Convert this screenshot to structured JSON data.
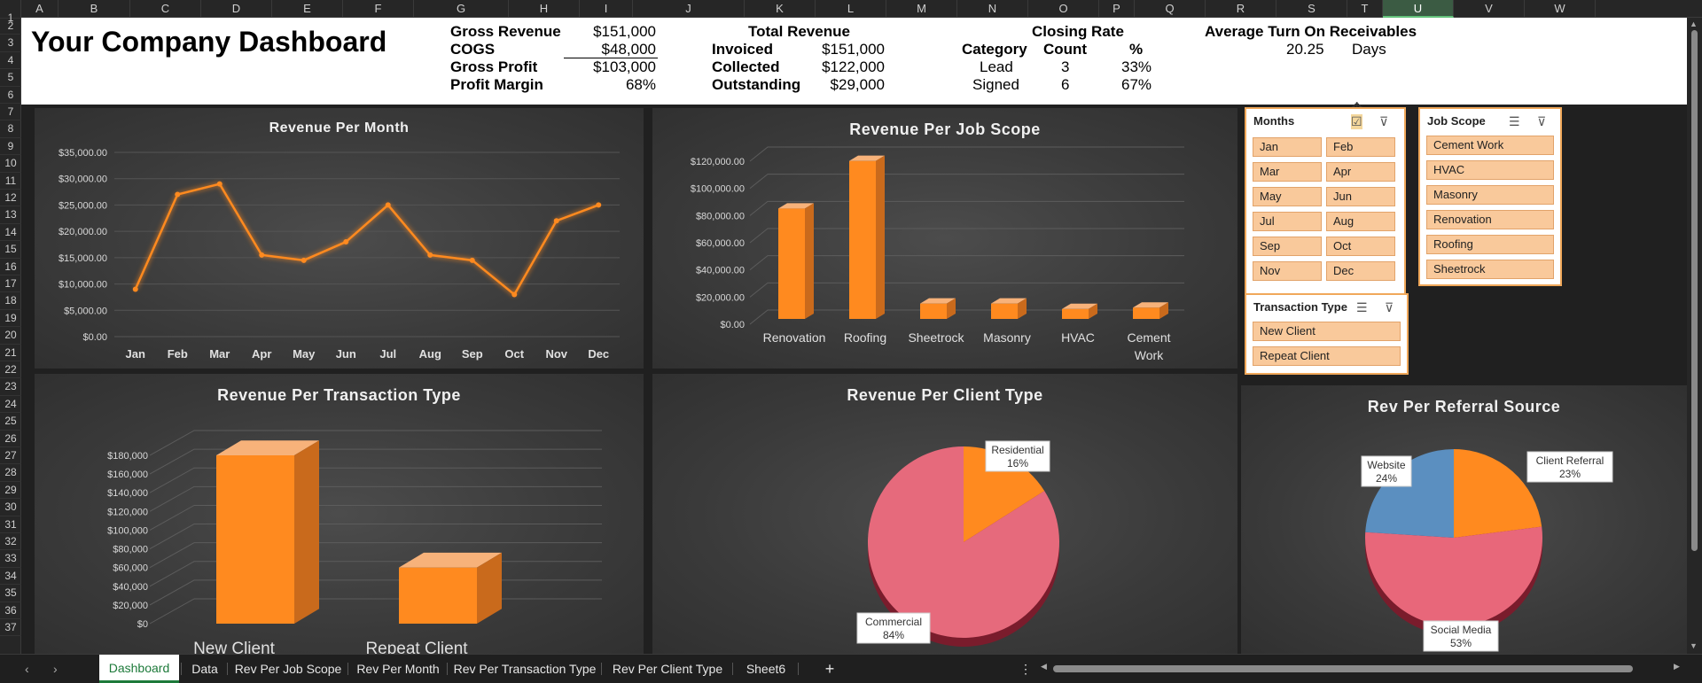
{
  "columns": [
    "A",
    "B",
    "C",
    "D",
    "E",
    "F",
    "G",
    "H",
    "I",
    "J",
    "K",
    "L",
    "M",
    "N",
    "O",
    "P",
    "Q",
    "R",
    "S",
    "T",
    "U",
    "V",
    "W"
  ],
  "selected_column": "U",
  "rows": [
    "1",
    "2",
    "3",
    "4",
    "5",
    "6",
    "7",
    "8",
    "9",
    "10",
    "11",
    "12",
    "13",
    "14",
    "15",
    "16",
    "17",
    "18",
    "19",
    "20",
    "21",
    "22",
    "23",
    "24",
    "25",
    "26",
    "27",
    "28",
    "29",
    "30",
    "31",
    "32",
    "33",
    "34",
    "35",
    "36",
    "37"
  ],
  "header": {
    "title": "Your Company Dashboard",
    "gross": {
      "labels": [
        "Gross Revenue",
        "COGS",
        "Gross Profit",
        "Profit Margin"
      ],
      "values": [
        "$151,000",
        "$48,000",
        "$103,000",
        "68%"
      ]
    },
    "total_revenue": {
      "title": "Total Revenue",
      "labels": [
        "Invoiced",
        "Collected",
        "Outstanding"
      ],
      "values": [
        "$151,000",
        "$122,000",
        "$29,000"
      ]
    },
    "closing_rate": {
      "title": "Closing Rate",
      "columns": [
        "Category",
        "Count",
        "%"
      ],
      "rows": [
        [
          "Lead",
          "3",
          "33%"
        ],
        [
          "Signed",
          "6",
          "67%"
        ]
      ]
    },
    "receivables": {
      "title": "Average Turn On Receivables",
      "value": "20.25",
      "unit": "Days"
    }
  },
  "charts": {
    "month": {
      "title": "Revenue Per Month",
      "y_ticks": [
        "$35,000.00",
        "$30,000.00",
        "$25,000.00",
        "$20,000.00",
        "$15,000.00",
        "$10,000.00",
        "$5,000.00",
        "$0.00"
      ]
    },
    "jobscope": {
      "title": "Revenue Per Job Scope",
      "y_ticks": [
        "$120,000.00",
        "$100,000.00",
        "$80,000.00",
        "$60,000.00",
        "$40,000.00",
        "$20,000.00",
        "$0.00"
      ],
      "x_labels": [
        "Renovation",
        "Roofing",
        "Sheetrock",
        "Masonry",
        "HVAC",
        "Cement",
        "Work"
      ]
    },
    "transaction": {
      "title": "Revenue Per Transaction Type",
      "y_ticks": [
        "$180,000",
        "$160,000",
        "$140,000",
        "$120,000",
        "$100,000",
        "$80,000",
        "$60,000",
        "$40,000",
        "$20,000",
        "$0"
      ]
    },
    "client": {
      "title": "Revenue Per Client Type",
      "labels": [
        {
          "name": "Residential",
          "pct": "16%"
        },
        {
          "name": "Commercial",
          "pct": "84%"
        }
      ]
    },
    "referral": {
      "title": "Rev Per Referral Source",
      "labels": [
        {
          "name": "Website",
          "pct": "24%"
        },
        {
          "name": "Client Referral",
          "pct": "23%"
        },
        {
          "name": "Social Media",
          "pct": "53%"
        }
      ]
    }
  },
  "chart_data": [
    {
      "type": "line",
      "title": "Revenue Per Month",
      "categories": [
        "Jan",
        "Feb",
        "Mar",
        "Apr",
        "May",
        "Jun",
        "Jul",
        "Aug",
        "Sep",
        "Oct",
        "Nov",
        "Dec"
      ],
      "values": [
        9000,
        27000,
        29000,
        15500,
        14500,
        18000,
        25000,
        15500,
        14500,
        8000,
        22000,
        25000
      ],
      "ylim": [
        0,
        35000
      ],
      "grid": true,
      "color": "#ff8a1f"
    },
    {
      "type": "bar",
      "title": "Revenue Per Job Scope",
      "categories": [
        "Renovation",
        "Roofing",
        "Sheetrock",
        "Masonry",
        "HVAC",
        "Cement Work"
      ],
      "values": [
        80000,
        115000,
        10000,
        10000,
        6000,
        7000
      ],
      "ylim": [
        0,
        120000
      ],
      "color": "#ff8a1f"
    },
    {
      "type": "bar",
      "title": "Revenue Per Transaction Type",
      "categories": [
        "New Client",
        "Repeat Client"
      ],
      "values": [
        180000,
        60000
      ],
      "ylim": [
        0,
        180000
      ],
      "color": "#ff8a1f"
    },
    {
      "type": "pie",
      "title": "Revenue Per Client Type",
      "categories": [
        "Residential",
        "Commercial"
      ],
      "values": [
        16,
        84
      ],
      "colors": [
        "#ff8a1f",
        "#e8677a"
      ]
    },
    {
      "type": "pie",
      "title": "Rev Per Referral Source",
      "categories": [
        "Client Referral",
        "Social Media",
        "Website"
      ],
      "values": [
        23,
        53,
        24
      ],
      "colors": [
        "#ff8a1f",
        "#e8677a",
        "#5b8fc0"
      ]
    }
  ],
  "slicers": {
    "months": {
      "title": "Months",
      "items": [
        "Jan",
        "Feb",
        "Mar",
        "Apr",
        "May",
        "Jun",
        "Jul",
        "Aug",
        "Sep",
        "Oct",
        "Nov",
        "Dec"
      ]
    },
    "jobscope": {
      "title": "Job Scope",
      "items": [
        "Cement Work",
        "HVAC",
        "Masonry",
        "Renovation",
        "Roofing",
        "Sheetrock"
      ]
    },
    "transaction": {
      "title": "Transaction Type",
      "items": [
        "New Client",
        "Repeat Client"
      ]
    }
  },
  "tabs": [
    "Dashboard",
    "Data",
    "Rev Per Job Scope",
    "Rev Per Month",
    "Rev Per Transaction Type",
    "Rev Per Client Type",
    "Sheet6"
  ],
  "active_tab": "Dashboard",
  "add_sheet": "+",
  "more": "⋮"
}
